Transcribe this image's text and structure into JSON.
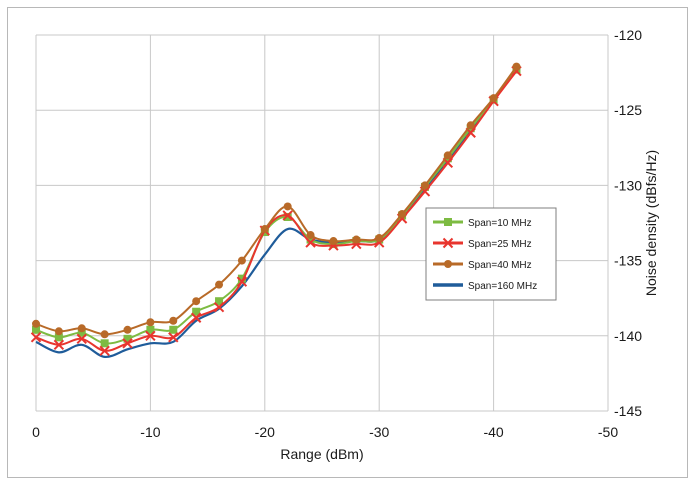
{
  "chart_data": {
    "type": "line",
    "title": "",
    "xlabel": "Range (dBm)",
    "ylabel": "Noise density (dBfs/Hz)",
    "xlim": [
      0,
      -50
    ],
    "ylim": [
      -145,
      -120
    ],
    "x_ticks": [
      0,
      -10,
      -20,
      -30,
      -40,
      -50
    ],
    "y_ticks": [
      -120,
      -125,
      -130,
      -135,
      -140,
      -145
    ],
    "y_axis_side": "right",
    "x_direction": "decreasing",
    "grid": true,
    "legend_position": "right-middle",
    "x": [
      0,
      -2,
      -4,
      -6,
      -8,
      -10,
      -12,
      -14,
      -16,
      -18,
      -20,
      -22,
      -24,
      -26,
      -28,
      -30,
      -32,
      -34,
      -36,
      -38,
      -40,
      -42
    ],
    "series": [
      {
        "name": "Span=10 MHz",
        "color": "#7dbb42",
        "marker": "square",
        "values": [
          -139.6,
          -140.1,
          -139.8,
          -140.5,
          -140.2,
          -139.6,
          -139.6,
          -138.4,
          -137.7,
          -136.2,
          -133.1,
          -132.1,
          -133.6,
          -133.9,
          -133.7,
          -133.6,
          -132.0,
          -130.1,
          -128.2,
          -126.2,
          -124.3,
          -122.3
        ]
      },
      {
        "name": "Span=25 MHz",
        "color": "#e8352e",
        "marker": "x",
        "values": [
          -140.1,
          -140.6,
          -140.2,
          -141.0,
          -140.5,
          -140.0,
          -140.1,
          -138.8,
          -138.1,
          -136.4,
          -133.0,
          -132.0,
          -133.8,
          -134.0,
          -133.9,
          -133.8,
          -132.2,
          -130.4,
          -128.5,
          -126.5,
          -124.4,
          -122.4
        ]
      },
      {
        "name": "Span=40 MHz",
        "color": "#b86a28",
        "marker": "circle",
        "values": [
          -139.2,
          -139.7,
          -139.5,
          -139.9,
          -139.6,
          -139.1,
          -139.0,
          -137.7,
          -136.6,
          -135.0,
          -132.9,
          -131.4,
          -133.3,
          -133.7,
          -133.6,
          -133.5,
          -131.9,
          -130.0,
          -128.0,
          -126.0,
          -124.2,
          -122.1
        ]
      },
      {
        "name": "Span=160 MHz",
        "color": "#1f5c9a",
        "marker": "none",
        "values": [
          -140.4,
          -141.1,
          -140.6,
          -141.4,
          -140.9,
          -140.5,
          -140.4,
          -139.0,
          -138.2,
          -136.7,
          -134.6,
          -132.9,
          -133.6,
          -133.8,
          -133.7,
          -133.6,
          -132.1,
          -130.2,
          -128.3,
          -126.3,
          -124.3,
          -122.2
        ]
      }
    ]
  }
}
